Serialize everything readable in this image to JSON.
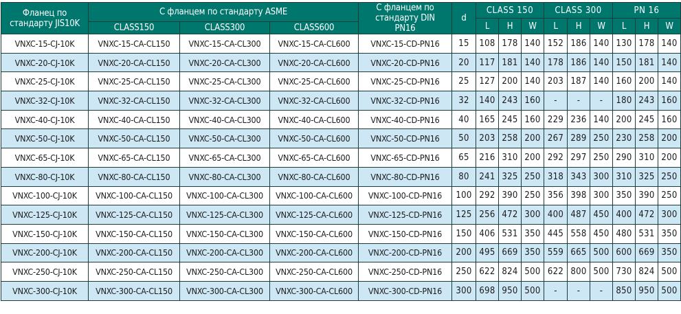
{
  "header": {
    "jis": "Фланец по стандарту JIS10K",
    "asme": "С фланцем по стандарту ASME",
    "asme_classes": [
      "CLASS150",
      "CLASS300",
      "CLASS600"
    ],
    "din": "С фланцем по стандарту DIN PN16",
    "d": "d",
    "groups": [
      "CLASS 150",
      "CLASS 300",
      "PN 16"
    ],
    "dims": [
      "L",
      "H",
      "W"
    ]
  },
  "colors": {
    "header_bg": "#00776d",
    "stripe": "#cde7f5"
  },
  "rows": [
    [
      "VNXC-15-CJ-10K",
      "VNXC-15-CA-CL150",
      "VNXC-15-CA-CL300",
      "VNXC-15-CA-CL600",
      "VNXC-15-CD-PN16",
      "15",
      "108",
      "178",
      "140",
      "152",
      "186",
      "140",
      "130",
      "178",
      "140"
    ],
    [
      "VNXC-20-CJ-10K",
      "VNXC-20-CA-CL150",
      "VNXC-20-CA-CL300",
      "VNXC-20-CA-CL600",
      "VNXC-20-CD-PN16",
      "20",
      "117",
      "181",
      "140",
      "178",
      "186",
      "140",
      "150",
      "181",
      "140"
    ],
    [
      "VNXC-25-CJ-10K",
      "VNXC-25-CA-CL150",
      "VNXC-25-CA-CL300",
      "VNXC-25-CA-CL600",
      "VNXC-25-CD-PN16",
      "25",
      "127",
      "200",
      "140",
      "203",
      "187",
      "140",
      "160",
      "200",
      "140"
    ],
    [
      "VNXC-32-CJ-10K",
      "VNXC-32-CA-CL150",
      "VNXC-32-CA-CL300",
      "VNXC-32-CA-CL600",
      "VNXC-32-CD-PN16",
      "32",
      "140",
      "243",
      "160",
      "-",
      "-",
      "-",
      "180",
      "243",
      "160"
    ],
    [
      "VNXC-40-CJ-10K",
      "VNXC-40-CA-CL150",
      "VNXC-40-CA-CL300",
      "VNXC-40-CA-CL600",
      "VNXC-40-CD-PN16",
      "40",
      "165",
      "245",
      "160",
      "229",
      "236",
      "140",
      "200",
      "245",
      "160"
    ],
    [
      "VNXC-50-CJ-10K",
      "VNXC-50-CA-CL150",
      "VNXC-50-CA-CL300",
      "VNXC-50-CA-CL600",
      "VNXC-50-CD-PN16",
      "50",
      "203",
      "258",
      "200",
      "267",
      "289",
      "250",
      "230",
      "258",
      "200"
    ],
    [
      "VNXC-65-CJ-10K",
      "VNXC-65-CA-CL150",
      "VNXC-65-CA-CL300",
      "VNXC-65-CA-CL600",
      "VNXC-65-CD-PN16",
      "65",
      "216",
      "310",
      "200",
      "292",
      "297",
      "250",
      "290",
      "310",
      "200"
    ],
    [
      "VNXC-80-CJ-10K",
      "VNXC-80-CA-CL150",
      "VNXC-80-CA-CL300",
      "VNXC-80-CA-CL600",
      "VNXC-80-CD-PN16",
      "80",
      "241",
      "325",
      "250",
      "318",
      "343",
      "300",
      "310",
      "325",
      "250"
    ],
    [
      "VNXC-100-CJ-10K",
      "VNXC-100-CA-CL150",
      "VNXC-100-CA-CL300",
      "VNXC-100-CA-CL600",
      "VNXC-100-CD-PN16",
      "100",
      "292",
      "390",
      "250",
      "356",
      "398",
      "300",
      "350",
      "390",
      "250"
    ],
    [
      "VNXC-125-CJ-10K",
      "VNXC-125-CA-CL150",
      "VNXC-125-CA-CL300",
      "VNXC-125-CA-CL600",
      "VNXC-125-CD-PN16",
      "125",
      "256",
      "472",
      "300",
      "400",
      "487",
      "450",
      "400",
      "472",
      "300"
    ],
    [
      "VNXC-150-CJ-10K",
      "VNXC-150-CA-CL150",
      "VNXC-150-CA-CL300",
      "VNXC-150-CA-CL600",
      "VNXC-150-CD-PN16",
      "150",
      "406",
      "531",
      "350",
      "445",
      "558",
      "450",
      "480",
      "531",
      "350"
    ],
    [
      "VNXC-200-CJ-10K",
      "VNXC-200-CA-CL150",
      "VNXC-200-CA-CL300",
      "VNXC-200-CA-CL600",
      "VNXC-200-CD-PN16",
      "200",
      "495",
      "669",
      "350",
      "559",
      "665",
      "500",
      "600",
      "669",
      "350"
    ],
    [
      "VNXC-250-CJ-10K",
      "VNXC-250-CA-CL150",
      "VNXC-250-CA-CL300",
      "VNXC-250-CA-CL600",
      "VNXC-250-CD-PN16",
      "250",
      "622",
      "824",
      "500",
      "622",
      "800",
      "500",
      "730",
      "824",
      "500"
    ],
    [
      "VNXC-300-CJ-10K",
      "VNXC-300-CA-CL150",
      "VNXC-300-CA-CL300",
      "VNXC-300-CA-CL600",
      "VNXC-300-CD-PN16",
      "300",
      "698",
      "950",
      "500",
      "-",
      "-",
      "-",
      "850",
      "950",
      "500"
    ]
  ]
}
